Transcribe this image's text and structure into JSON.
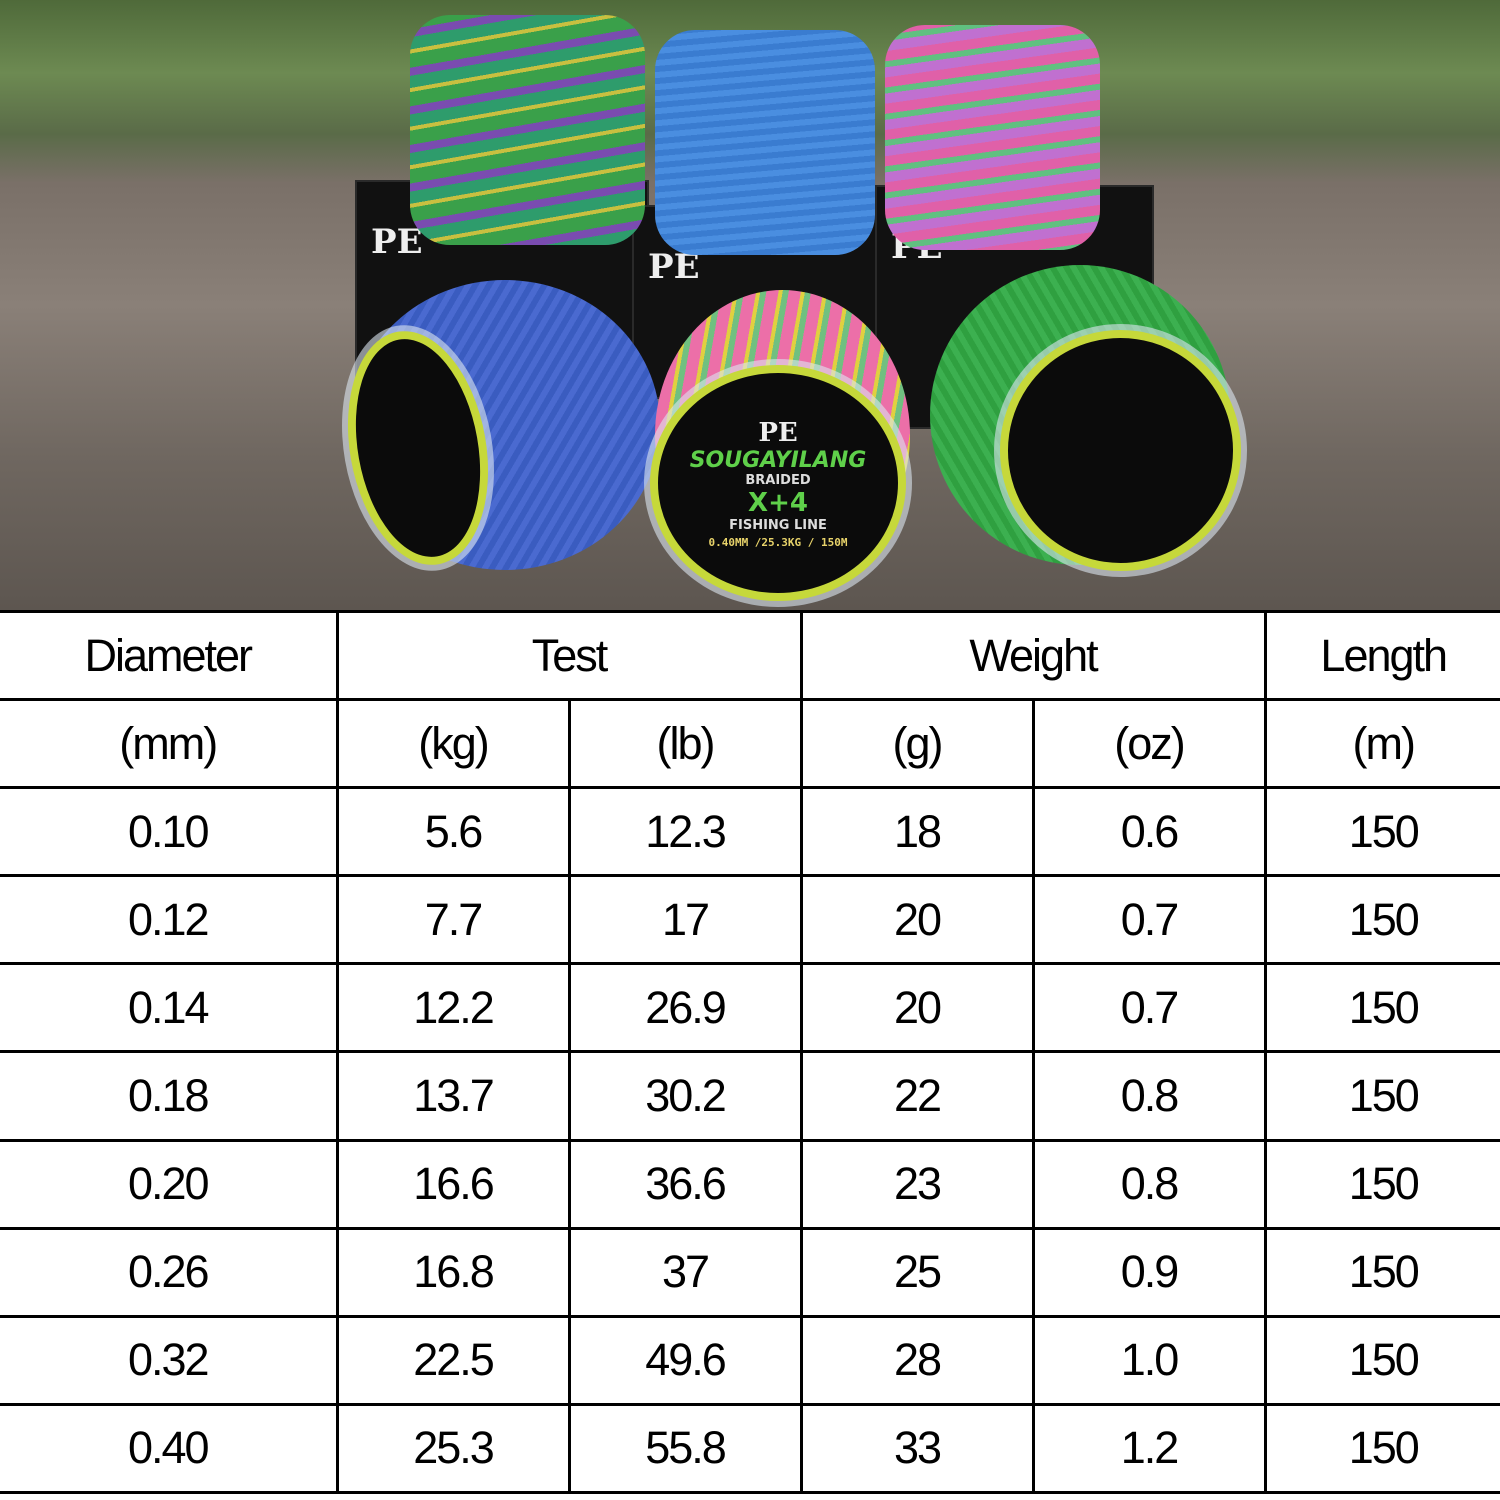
{
  "product_label": {
    "pe": "PE",
    "brand": "SOUGAYILANG",
    "line1": "BRAIDED",
    "line2": "FISHING LINE",
    "x4": "X+4",
    "spec": "0.40MM /25.3KG / 150M"
  },
  "colors": {
    "label_green": "#5fd04a",
    "rim_yellow": "#c6d83a",
    "table_border": "#000000"
  },
  "table": {
    "headers": [
      "Diameter",
      "Test",
      "Weight",
      "Length"
    ],
    "units": [
      "(mm)",
      "(kg)",
      "(lb)",
      "(g)",
      "(oz)",
      "(m)"
    ],
    "rows": [
      [
        "0.10",
        "5.6",
        "12.3",
        "18",
        "0.6",
        "150"
      ],
      [
        "0.12",
        "7.7",
        "17",
        "20",
        "0.7",
        "150"
      ],
      [
        "0.14",
        "12.2",
        "26.9",
        "20",
        "0.7",
        "150"
      ],
      [
        "0.18",
        "13.7",
        "30.2",
        "22",
        "0.8",
        "150"
      ],
      [
        "0.20",
        "16.6",
        "36.6",
        "23",
        "0.8",
        "150"
      ],
      [
        "0.26",
        "16.8",
        "37",
        "25",
        "0.9",
        "150"
      ],
      [
        "0.32",
        "22.5",
        "49.6",
        "28",
        "1.0",
        "150"
      ],
      [
        "0.40",
        "25.3",
        "55.8",
        "33",
        "1.2",
        "150"
      ]
    ]
  }
}
